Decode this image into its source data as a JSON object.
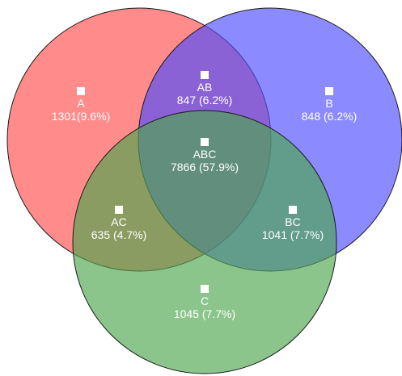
{
  "colors": {
    "A": "#ff4d4d",
    "B": "#4d4dff",
    "C": "#4da64d",
    "marker": "#ffffff",
    "outline": "#1a1a1a"
  },
  "sets": [
    {
      "id": "A",
      "name": "A"
    },
    {
      "id": "B",
      "name": "B"
    },
    {
      "id": "C",
      "name": "C"
    }
  ],
  "regions": [
    {
      "id": "A",
      "name": "A",
      "value": "1301(9.6%)"
    },
    {
      "id": "AB",
      "name": "AB",
      "value": "847 (6.2%)"
    },
    {
      "id": "B",
      "name": "B",
      "value": "848 (6.2%)"
    },
    {
      "id": "ABC",
      "name": "ABC",
      "value": "7866 (57.9%)"
    },
    {
      "id": "AC",
      "name": "AC",
      "value": "635 (4.7%)"
    },
    {
      "id": "BC",
      "name": "BC",
      "value": "1041 (7.7%)"
    },
    {
      "id": "C",
      "name": "C",
      "value": "1045 (7.7%)"
    }
  ]
}
